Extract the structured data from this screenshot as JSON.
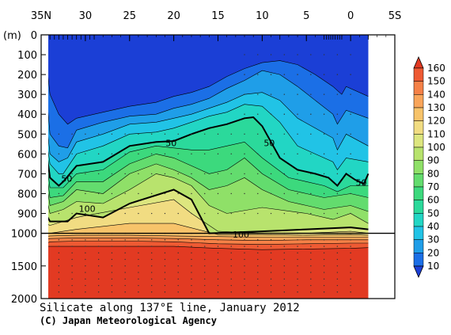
{
  "chart_data": {
    "type": "contour-section",
    "title": "Silicate along 137°E line, January 2012",
    "credit": "(C) Japan Meteorological Agency",
    "y_unit_label": "(m)",
    "x_axis": {
      "ticks": [
        {
          "value": 35,
          "label": "35N"
        },
        {
          "value": 30,
          "label": "30"
        },
        {
          "value": 25,
          "label": "25"
        },
        {
          "value": 20,
          "label": "20"
        },
        {
          "value": 15,
          "label": "15"
        },
        {
          "value": 10,
          "label": "10"
        },
        {
          "value": 5,
          "label": "5"
        },
        {
          "value": 0,
          "label": "0"
        },
        {
          "value": -5,
          "label": "5S"
        }
      ],
      "range": [
        35,
        -5
      ]
    },
    "y_axis": {
      "upper": {
        "range": [
          0,
          1000
        ],
        "ticks": [
          0,
          100,
          200,
          300,
          400,
          500,
          600,
          700,
          800,
          900,
          1000
        ]
      },
      "lower": {
        "range": [
          1000,
          2000
        ],
        "ticks": [
          1500,
          2000
        ]
      }
    },
    "colorbar": {
      "levels": [
        10,
        20,
        30,
        40,
        50,
        60,
        70,
        80,
        90,
        100,
        110,
        120,
        130,
        140,
        150,
        160
      ],
      "colors": [
        "#1b3fd6",
        "#1b6fe6",
        "#1f9ee8",
        "#21c3e6",
        "#22d6c4",
        "#2bd99b",
        "#3cd97d",
        "#63dc6e",
        "#8fe068",
        "#b8e36d",
        "#dde67f",
        "#f1dc82",
        "#f7c36a",
        "#f9a55a",
        "#f58147",
        "#ee5a33",
        "#e23a22"
      ],
      "ticks": [
        "160",
        "150",
        "140",
        "130",
        "120",
        "110",
        "100",
        "90",
        "80",
        "70",
        "60",
        "50",
        "40",
        "30",
        "20",
        "10"
      ]
    },
    "contour_labels": [
      {
        "text": "50",
        "lat": 20.3,
        "depth": 545
      },
      {
        "text": "50",
        "lat": 9.2,
        "depth": 545
      },
      {
        "text": "50",
        "lat": 32.1,
        "depth": 725
      },
      {
        "text": "50",
        "lat": -1.2,
        "depth": 745
      },
      {
        "text": "100",
        "lat": 29.8,
        "depth": 875
      },
      {
        "text": "100",
        "lat": 12.4,
        "depth": 1020
      }
    ],
    "layers": [
      {
        "value": 160,
        "profile": [
          [
            34.5,
            1200
          ],
          [
            34.0,
            1200
          ],
          [
            31.0,
            1200
          ],
          [
            25.0,
            1200
          ],
          [
            20.0,
            1200
          ],
          [
            15.0,
            1230
          ],
          [
            10.0,
            1250
          ],
          [
            5.0,
            1240
          ],
          [
            0.0,
            1230
          ],
          [
            -2.0,
            1220
          ]
        ]
      },
      {
        "value": 150,
        "profile": [
          [
            34.5,
            1160
          ],
          [
            34.0,
            1130
          ],
          [
            31.0,
            1120
          ],
          [
            25.0,
            1120
          ],
          [
            20.0,
            1130
          ],
          [
            15.0,
            1160
          ],
          [
            10.0,
            1170
          ],
          [
            5.0,
            1160
          ],
          [
            0.0,
            1150
          ],
          [
            -2.0,
            1150
          ]
        ]
      },
      {
        "value": 140,
        "profile": [
          [
            34.5,
            1100
          ],
          [
            34.0,
            1080
          ],
          [
            31.0,
            1070
          ],
          [
            25.0,
            1070
          ],
          [
            20.0,
            1080
          ],
          [
            15.0,
            1100
          ],
          [
            10.0,
            1110
          ],
          [
            5.0,
            1100
          ],
          [
            0.0,
            1100
          ],
          [
            -2.0,
            1100
          ]
        ]
      },
      {
        "value": 130,
        "profile": [
          [
            34.5,
            1050
          ],
          [
            34.0,
            1040
          ],
          [
            31.0,
            1030
          ],
          [
            25.0,
            1030
          ],
          [
            20.0,
            1040
          ],
          [
            15.0,
            1050
          ],
          [
            10.0,
            1060
          ],
          [
            5.0,
            1060
          ],
          [
            0.0,
            1060
          ],
          [
            -2.0,
            1060
          ]
        ]
      },
      {
        "value": 120,
        "profile": [
          [
            34.5,
            1000
          ],
          [
            34.0,
            1000
          ],
          [
            31.0,
            980
          ],
          [
            25.0,
            950
          ],
          [
            20.0,
            950
          ],
          [
            15.0,
            1020
          ],
          [
            10.0,
            1020
          ],
          [
            5.0,
            1030
          ],
          [
            0.0,
            1020
          ],
          [
            -2.0,
            1030
          ]
        ]
      },
      {
        "value": 110,
        "profile": [
          [
            34.5,
            950
          ],
          [
            34.0,
            960
          ],
          [
            31.0,
            920
          ],
          [
            25.0,
            870
          ],
          [
            20.0,
            830
          ],
          [
            18.0,
            900
          ],
          [
            15.0,
            990
          ],
          [
            10.0,
            1000
          ],
          [
            5.0,
            1000
          ],
          [
            0.0,
            990
          ],
          [
            -2.0,
            1000
          ]
        ]
      },
      {
        "value": 100,
        "profile": [
          [
            34.5,
            900
          ],
          [
            34.0,
            940
          ],
          [
            32.0,
            940
          ],
          [
            31.0,
            900
          ],
          [
            28.0,
            920
          ],
          [
            25.0,
            850
          ],
          [
            20.0,
            780
          ],
          [
            18.0,
            830
          ],
          [
            16.0,
            1000
          ],
          [
            10.0,
            990
          ],
          [
            5.0,
            980
          ],
          [
            0.0,
            970
          ],
          [
            -2.0,
            980
          ]
        ]
      },
      {
        "value": 90,
        "profile": [
          [
            34.5,
            800
          ],
          [
            34.0,
            900
          ],
          [
            32.5,
            880
          ],
          [
            31.0,
            840
          ],
          [
            28.0,
            850
          ],
          [
            25.0,
            780
          ],
          [
            22.0,
            700
          ],
          [
            20.0,
            720
          ],
          [
            18.0,
            760
          ],
          [
            16.0,
            860
          ],
          [
            14.0,
            900
          ],
          [
            10.0,
            870
          ],
          [
            5.0,
            900
          ],
          [
            2.0,
            930
          ],
          [
            0.0,
            900
          ],
          [
            -2.0,
            950
          ]
        ]
      },
      {
        "value": 80,
        "profile": [
          [
            34.5,
            720
          ],
          [
            34.0,
            860
          ],
          [
            32.5,
            840
          ],
          [
            31.0,
            780
          ],
          [
            28.0,
            800
          ],
          [
            25.0,
            700
          ],
          [
            22.0,
            650
          ],
          [
            20.0,
            680
          ],
          [
            18.0,
            720
          ],
          [
            16.0,
            780
          ],
          [
            14.0,
            760
          ],
          [
            12.0,
            720
          ],
          [
            10.0,
            780
          ],
          [
            7.0,
            840
          ],
          [
            5.0,
            860
          ],
          [
            3.0,
            880
          ],
          [
            0.0,
            860
          ],
          [
            -2.0,
            890
          ]
        ]
      },
      {
        "value": 70,
        "profile": [
          [
            34.5,
            660
          ],
          [
            34.0,
            820
          ],
          [
            32.5,
            810
          ],
          [
            31.0,
            740
          ],
          [
            28.0,
            740
          ],
          [
            25.0,
            650
          ],
          [
            22.0,
            600
          ],
          [
            20.0,
            620
          ],
          [
            18.0,
            660
          ],
          [
            16.0,
            700
          ],
          [
            14.0,
            680
          ],
          [
            12.0,
            620
          ],
          [
            10.0,
            700
          ],
          [
            7.0,
            780
          ],
          [
            5.0,
            800
          ],
          [
            3.0,
            820
          ],
          [
            0.0,
            800
          ],
          [
            -2.0,
            820
          ]
        ]
      },
      {
        "value": 60,
        "profile": [
          [
            34.5,
            610
          ],
          [
            34.0,
            770
          ],
          [
            32.5,
            770
          ],
          [
            31.0,
            700
          ],
          [
            28.0,
            680
          ],
          [
            25.0,
            590
          ],
          [
            22.0,
            560
          ],
          [
            20.0,
            570
          ],
          [
            18.0,
            580
          ],
          [
            16.0,
            580
          ],
          [
            14.0,
            560
          ],
          [
            12.0,
            540
          ],
          [
            10.0,
            620
          ],
          [
            7.0,
            720
          ],
          [
            5.0,
            740
          ],
          [
            3.0,
            760
          ],
          [
            1.5,
            790
          ],
          [
            0.0,
            760
          ],
          [
            -2.0,
            760
          ]
        ]
      },
      {
        "value": 50,
        "profile": [
          [
            34.5,
            560
          ],
          [
            34.0,
            720
          ],
          [
            33.0,
            760
          ],
          [
            32.5,
            740
          ],
          [
            31.0,
            660
          ],
          [
            28.0,
            640
          ],
          [
            25.0,
            560
          ],
          [
            22.0,
            540
          ],
          [
            20.0,
            535
          ],
          [
            18.0,
            500
          ],
          [
            16.0,
            470
          ],
          [
            14.0,
            450
          ],
          [
            12.0,
            420
          ],
          [
            11.0,
            415
          ],
          [
            10.0,
            460
          ],
          [
            8.0,
            620
          ],
          [
            6.0,
            680
          ],
          [
            4.0,
            700
          ],
          [
            2.5,
            720
          ],
          [
            1.5,
            760
          ],
          [
            0.5,
            700
          ],
          [
            -0.5,
            730
          ],
          [
            -1.5,
            750
          ],
          [
            -2.0,
            700
          ]
        ]
      },
      {
        "value": 40,
        "profile": [
          [
            34.5,
            500
          ],
          [
            34.0,
            650
          ],
          [
            33.0,
            700
          ],
          [
            32.5,
            700
          ],
          [
            31.0,
            600
          ],
          [
            28.0,
            560
          ],
          [
            25.0,
            500
          ],
          [
            22.0,
            490
          ],
          [
            20.0,
            470
          ],
          [
            18.0,
            440
          ],
          [
            16.0,
            410
          ],
          [
            14.0,
            390
          ],
          [
            12.0,
            350
          ],
          [
            10.0,
            360
          ],
          [
            8.0,
            440
          ],
          [
            6.0,
            560
          ],
          [
            4.0,
            600
          ],
          [
            2.0,
            640
          ],
          [
            1.5,
            680
          ],
          [
            0.5,
            620
          ],
          [
            -2.0,
            640
          ]
        ]
      },
      {
        "value": 30,
        "profile": [
          [
            34.5,
            400
          ],
          [
            34.0,
            600
          ],
          [
            33.0,
            640
          ],
          [
            32.0,
            620
          ],
          [
            31.0,
            540
          ],
          [
            28.0,
            500
          ],
          [
            25.0,
            450
          ],
          [
            22.0,
            440
          ],
          [
            20.0,
            420
          ],
          [
            18.0,
            400
          ],
          [
            16.0,
            370
          ],
          [
            14.0,
            340
          ],
          [
            12.0,
            300
          ],
          [
            10.0,
            290
          ],
          [
            8.0,
            330
          ],
          [
            6.0,
            420
          ],
          [
            4.0,
            470
          ],
          [
            2.0,
            520
          ],
          [
            1.5,
            580
          ],
          [
            0.5,
            500
          ],
          [
            -2.0,
            560
          ]
        ]
      },
      {
        "value": 20,
        "profile": [
          [
            34.5,
            250
          ],
          [
            34.0,
            500
          ],
          [
            33.0,
            560
          ],
          [
            32.0,
            570
          ],
          [
            31.0,
            480
          ],
          [
            28.0,
            440
          ],
          [
            25.0,
            410
          ],
          [
            22.0,
            400
          ],
          [
            20.0,
            370
          ],
          [
            18.0,
            350
          ],
          [
            16.0,
            320
          ],
          [
            14.0,
            270
          ],
          [
            12.0,
            230
          ],
          [
            10.0,
            180
          ],
          [
            8.0,
            200
          ],
          [
            6.0,
            260
          ],
          [
            4.0,
            330
          ],
          [
            2.0,
            400
          ],
          [
            1.5,
            450
          ],
          [
            0.5,
            380
          ],
          [
            -2.0,
            420
          ]
        ]
      },
      {
        "value": 10,
        "profile": [
          [
            34.5,
            100
          ],
          [
            34.0,
            300
          ],
          [
            33.0,
            400
          ],
          [
            32.0,
            450
          ],
          [
            31.0,
            420
          ],
          [
            28.0,
            390
          ],
          [
            25.0,
            360
          ],
          [
            22.0,
            340
          ],
          [
            20.0,
            310
          ],
          [
            18.0,
            290
          ],
          [
            16.0,
            260
          ],
          [
            14.0,
            210
          ],
          [
            12.0,
            170
          ],
          [
            10.0,
            140
          ],
          [
            8.0,
            130
          ],
          [
            6.0,
            150
          ],
          [
            4.0,
            200
          ],
          [
            2.0,
            260
          ],
          [
            1.0,
            300
          ],
          [
            0.5,
            260
          ],
          [
            -2.0,
            310
          ]
        ]
      }
    ]
  }
}
